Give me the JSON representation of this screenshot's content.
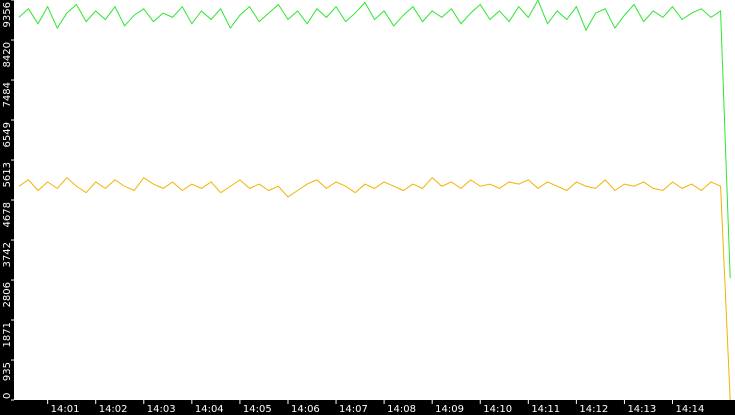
{
  "chart_data": {
    "type": "line",
    "x": [
      840.4,
      840.6,
      840.8,
      841.0,
      841.2,
      841.4,
      841.6,
      841.8,
      842.0,
      842.2,
      842.4,
      842.6,
      842.8,
      843.0,
      843.2,
      843.4,
      843.6,
      843.8,
      844.0,
      844.2,
      844.4,
      844.6,
      844.8,
      845.0,
      845.2,
      845.4,
      845.6,
      845.8,
      846.0,
      846.2,
      846.4,
      846.6,
      846.8,
      847.0,
      847.2,
      847.4,
      847.6,
      847.8,
      848.0,
      848.2,
      848.4,
      848.6,
      848.8,
      849.0,
      849.2,
      849.4,
      849.6,
      849.8,
      850.0,
      850.2,
      850.4,
      850.6,
      850.8,
      851.0,
      851.2,
      851.4,
      851.6,
      851.8,
      852.0,
      852.2,
      852.4,
      852.6,
      852.8,
      853.0,
      853.2,
      853.4,
      853.6,
      853.8,
      854.0,
      854.2,
      854.4,
      854.6,
      854.8,
      855.0,
      855.2
    ],
    "series": [
      {
        "color": "#2ee62e",
        "values": [
          8950,
          9150,
          8800,
          9200,
          8700,
          9050,
          9250,
          8850,
          9100,
          8900,
          9200,
          8750,
          9000,
          9150,
          8850,
          9050,
          8950,
          9200,
          8800,
          9100,
          8900,
          9150,
          8700,
          9000,
          9200,
          8850,
          9050,
          9250,
          8900,
          9100,
          8800,
          9150,
          8950,
          9200,
          8850,
          9050,
          9300,
          8900,
          9100,
          8750,
          9000,
          9200,
          8850,
          9100,
          8950,
          9150,
          8800,
          9050,
          9250,
          8900,
          9100,
          8850,
          9200,
          8950,
          9350,
          8800,
          9100,
          8900,
          9200,
          8650,
          9050,
          9150,
          8700,
          9000,
          9250,
          8850,
          9100,
          8950,
          9200,
          8900,
          9050,
          9150,
          8950,
          9100,
          2850
        ]
      },
      {
        "color": "#f0b400",
        "values": [
          5000,
          5150,
          4900,
          5100,
          4950,
          5200,
          5000,
          4850,
          5100,
          4950,
          5150,
          5000,
          4900,
          5200,
          5050,
          4950,
          5100,
          4900,
          5050,
          4950,
          5100,
          4850,
          5000,
          5150,
          4950,
          5050,
          4900,
          5000,
          4750,
          4900,
          5050,
          5150,
          4950,
          5100,
          5000,
          4850,
          5050,
          4950,
          5100,
          5000,
          4900,
          5050,
          4950,
          5200,
          5000,
          5100,
          4950,
          5150,
          5000,
          5050,
          4950,
          5100,
          5050,
          5150,
          4950,
          5100,
          5000,
          4900,
          5100,
          5000,
          4950,
          5150,
          4900,
          5050,
          5000,
          5100,
          4950,
          4900,
          5100,
          4950,
          5050,
          4900,
          5100,
          5000,
          0
        ]
      }
    ],
    "xlim": [
      840.3,
      855.3
    ],
    "xticks": [
      {
        "value": 841,
        "label": "14:01"
      },
      {
        "value": 842,
        "label": "14:02"
      },
      {
        "value": 843,
        "label": "14:03"
      },
      {
        "value": 844,
        "label": "14:04"
      },
      {
        "value": 845,
        "label": "14:05"
      },
      {
        "value": 846,
        "label": "14:06"
      },
      {
        "value": 847,
        "label": "14:07"
      },
      {
        "value": 848,
        "label": "14:08"
      },
      {
        "value": 849,
        "label": "14:09"
      },
      {
        "value": 850,
        "label": "14:10"
      },
      {
        "value": 851,
        "label": "14:11"
      },
      {
        "value": 852,
        "label": "14:12"
      },
      {
        "value": 853,
        "label": "14:13"
      },
      {
        "value": 854,
        "label": "14:14"
      }
    ],
    "ylim": [
      0,
      9356
    ],
    "yticks": [
      0,
      935,
      1871,
      2806,
      3742,
      4678,
      5613,
      6549,
      7484,
      8420,
      9356
    ]
  }
}
